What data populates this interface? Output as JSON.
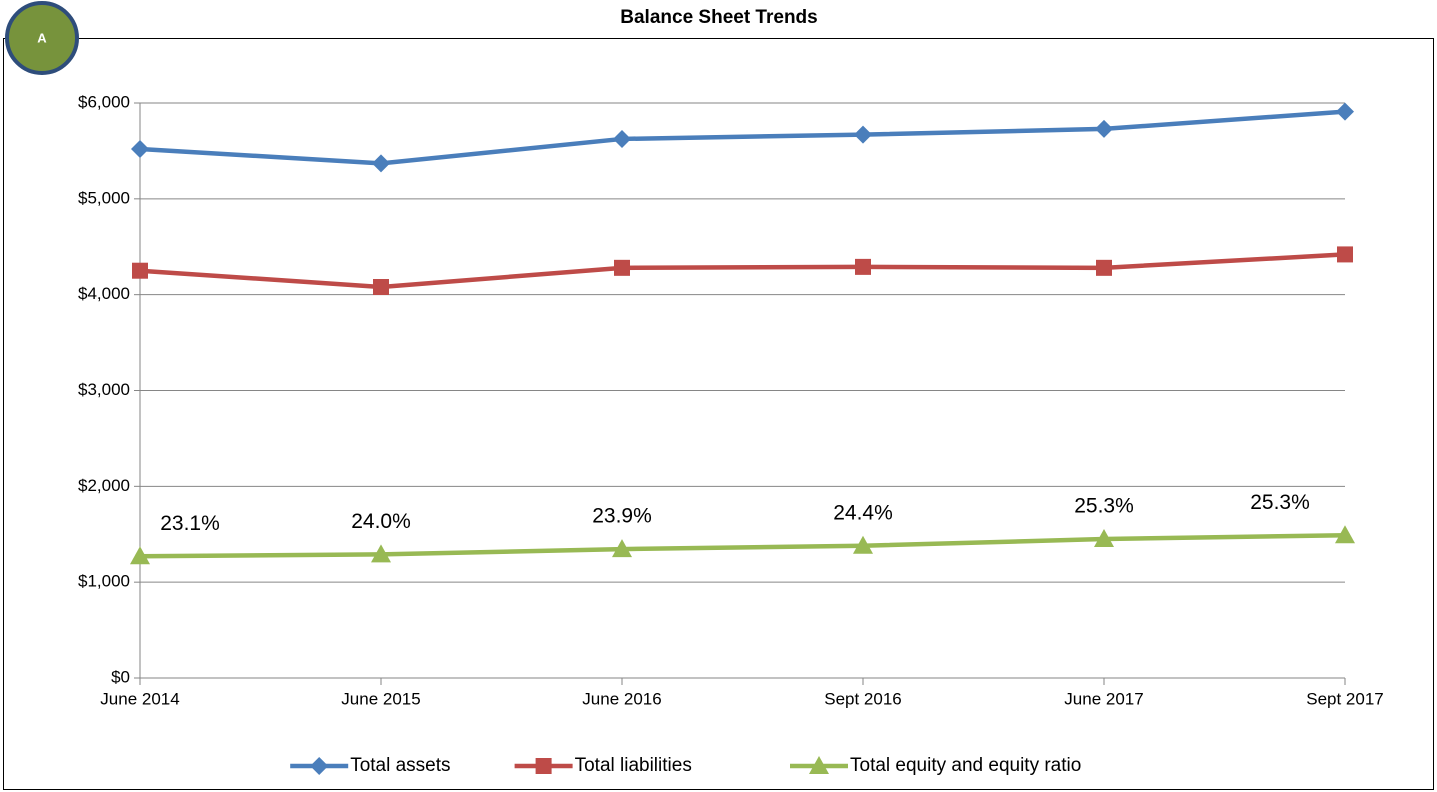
{
  "badge": "A",
  "chart_data": {
    "type": "line",
    "title": "Balance Sheet Trends",
    "categories": [
      "June 2014",
      "June 2015",
      "June 2016",
      "Sept 2016",
      "June 2017",
      "Sept 2017"
    ],
    "series": [
      {
        "name": "Total assets",
        "color": "#4a7ebb",
        "marker": "diamond",
        "values": [
          5520,
          5370,
          5625,
          5670,
          5730,
          5910
        ]
      },
      {
        "name": "Total liabilities",
        "color": "#be4b48",
        "marker": "square",
        "values": [
          4250,
          4080,
          4280,
          4290,
          4280,
          4420
        ]
      },
      {
        "name": "Total equity and equity ratio",
        "color": "#98b954",
        "marker": "triangle",
        "values": [
          1270,
          1290,
          1345,
          1380,
          1450,
          1490
        ]
      }
    ],
    "annotations": [
      "23.1%",
      "24.0%",
      "23.9%",
      "24.4%",
      "25.3%",
      "25.3%"
    ],
    "annotation_series": 2,
    "ylim": [
      0,
      6000
    ],
    "yticks": [
      {
        "value": 0,
        "label": "$0"
      },
      {
        "value": 1000,
        "label": "$1,000"
      },
      {
        "value": 2000,
        "label": "$2,000"
      },
      {
        "value": 3000,
        "label": "$3,000"
      },
      {
        "value": 4000,
        "label": "$4,000"
      },
      {
        "value": 5000,
        "label": "$5,000"
      },
      {
        "value": 6000,
        "label": "$6,000"
      }
    ],
    "grid": true,
    "legend": "bottom"
  }
}
